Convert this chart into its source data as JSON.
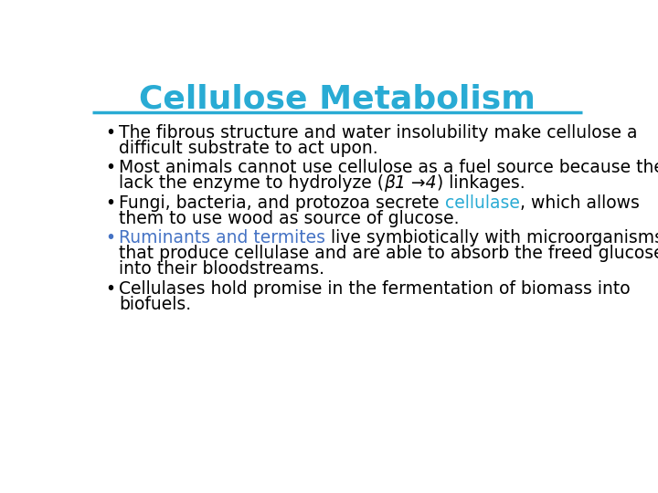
{
  "title": "Cellulose Metabolism",
  "title_color": "#29ABD4",
  "title_fontsize": 26,
  "title_fontweight": "bold",
  "line_color": "#29ABD4",
  "background_color": "#ffffff",
  "text_fontsize": 13.5,
  "bullets": [
    {
      "bullet_color": "#000000",
      "lines": [
        [
          {
            "text": "The fibrous structure and water insolubility make cellulose a",
            "color": "#000000",
            "italic": false
          }
        ],
        [
          {
            "text": "difficult substrate to act upon.",
            "color": "#000000",
            "italic": false
          }
        ]
      ]
    },
    {
      "bullet_color": "#000000",
      "lines": [
        [
          {
            "text": "Most animals cannot use cellulose as a fuel source because they",
            "color": "#000000",
            "italic": false
          }
        ],
        [
          {
            "text": "lack the enzyme to hydrolyze (",
            "color": "#000000",
            "italic": false
          },
          {
            "text": "β1 →4",
            "color": "#000000",
            "italic": true
          },
          {
            "text": ") linkages.",
            "color": "#000000",
            "italic": false
          }
        ]
      ]
    },
    {
      "bullet_color": "#000000",
      "lines": [
        [
          {
            "text": "Fungi, bacteria, and protozoa secrete ",
            "color": "#000000",
            "italic": false
          },
          {
            "text": "cellulase",
            "color": "#29ABD4",
            "italic": false
          },
          {
            "text": ", which allows",
            "color": "#000000",
            "italic": false
          }
        ],
        [
          {
            "text": "them to use wood as source of glucose.",
            "color": "#000000",
            "italic": false
          }
        ]
      ]
    },
    {
      "bullet_color": "#4472C4",
      "lines": [
        [
          {
            "text": "Ruminants and termites",
            "color": "#4472C4",
            "italic": false
          },
          {
            "text": " live symbiotically with microorganisms",
            "color": "#000000",
            "italic": false
          }
        ],
        [
          {
            "text": "that produce cellulase and are able to absorb the freed glucose",
            "color": "#000000",
            "italic": false
          }
        ],
        [
          {
            "text": "into their bloodstreams.",
            "color": "#000000",
            "italic": false
          }
        ]
      ]
    },
    {
      "bullet_color": "#000000",
      "lines": [
        [
          {
            "text": "Cellulases hold promise in the fermentation of biomass into",
            "color": "#000000",
            "italic": false
          }
        ],
        [
          {
            "text": "biofuels.",
            "color": "#000000",
            "italic": false
          }
        ]
      ]
    }
  ]
}
